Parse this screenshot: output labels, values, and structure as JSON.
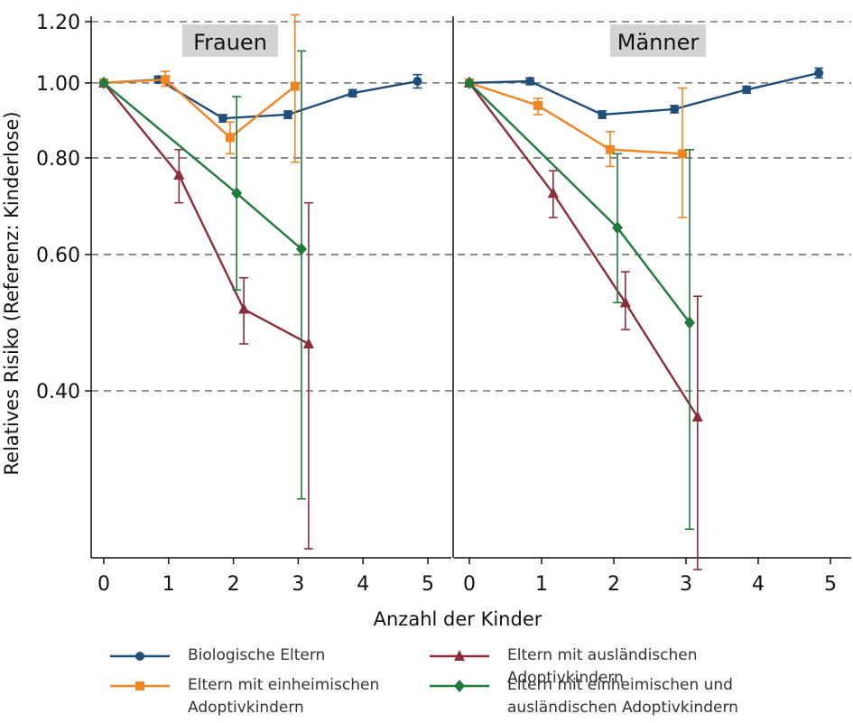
{
  "chart_data": {
    "type": "line",
    "ylabel": "Relatives Risiko (Referenz: Kinderlose)",
    "xlabel": "Anzahl der Kinder",
    "y_scale": "log",
    "y_ticks": [
      "1.20",
      "1.00",
      "0.80",
      "0.60",
      "0.40"
    ],
    "y_tick_values": [
      1.2,
      1.0,
      0.8,
      0.6,
      0.4
    ],
    "ylim": [
      0.22,
      1.2
    ],
    "xlim": [
      -0.2,
      5.3
    ],
    "x_ticks": [
      "0",
      "1",
      "2",
      "3",
      "4",
      "5"
    ],
    "grid": "horizontal dashed",
    "legend_position": "bottom",
    "panels": [
      {
        "title": "Frauen",
        "series": [
          {
            "name": "Biologische Eltern",
            "color": "#1f4e79",
            "marker": "circle",
            "x": [
              0,
              0.84,
              1.84,
              2.84,
              3.84,
              4.84
            ],
            "y": [
              1.0,
              1.01,
              0.9,
              0.91,
              0.97,
              1.005
            ],
            "ci": [
              [
                1.0,
                1.0
              ],
              [
                1.0,
                1.02
              ],
              [
                0.89,
                0.91
              ],
              [
                0.9,
                0.92
              ],
              [
                0.96,
                0.98
              ],
              [
                0.985,
                1.025
              ]
            ]
          },
          {
            "name": "Eltern mit einheimischen Adoptivkindern",
            "color": "#f08523",
            "marker": "square",
            "x": [
              0,
              0.95,
              1.95,
              2.95
            ],
            "y": [
              1.0,
              1.01,
              0.85,
              0.99
            ],
            "ci": [
              [
                1.0,
                1.0
              ],
              [
                0.99,
                1.035
              ],
              [
                0.81,
                0.89
              ],
              [
                0.79,
                1.225
              ]
            ]
          },
          {
            "name": "Eltern mit ausländischen Adoptivkindern",
            "color": "#8b2e3c",
            "marker": "triangle",
            "x": [
              0,
              1.16,
              2.16,
              3.16
            ],
            "y": [
              1.0,
              0.76,
              0.51,
              0.46
            ],
            "ci": [
              [
                1.0,
                1.0
              ],
              [
                0.7,
                0.82
              ],
              [
                0.46,
                0.56
              ],
              [
                0.25,
                0.7
              ]
            ]
          },
          {
            "name": "Eltern mit einheimischen und ausländischen Adoptivkindern",
            "color": "#1f7a3c",
            "marker": "diamond",
            "x": [
              0,
              2.05,
              3.05
            ],
            "y": [
              1.0,
              0.72,
              0.61
            ],
            "ci": [
              [
                1.0,
                1.0
              ],
              [
                0.54,
                0.96
              ],
              [
                0.29,
                1.1
              ]
            ]
          }
        ]
      },
      {
        "title": "Männer",
        "series": [
          {
            "name": "Biologische Eltern",
            "color": "#1f4e79",
            "marker": "circle",
            "x": [
              0,
              0.84,
              1.84,
              2.84,
              3.84,
              4.84
            ],
            "y": [
              1.0,
              1.005,
              0.91,
              0.925,
              0.98,
              1.03
            ],
            "ci": [
              [
                1.0,
                1.0
              ],
              [
                0.995,
                1.015
              ],
              [
                0.9,
                0.92
              ],
              [
                0.915,
                0.935
              ],
              [
                0.97,
                0.99
              ],
              [
                1.015,
                1.045
              ]
            ]
          },
          {
            "name": "Eltern mit einheimischen Adoptivkindern",
            "color": "#f08523",
            "marker": "square",
            "x": [
              0,
              0.95,
              1.95,
              2.95
            ],
            "y": [
              1.0,
              0.935,
              0.82,
              0.81
            ],
            "ci": [
              [
                1.0,
                1.0
              ],
              [
                0.91,
                0.955
              ],
              [
                0.78,
                0.865
              ],
              [
                0.67,
                0.985
              ]
            ]
          },
          {
            "name": "Eltern mit ausländischen Adoptivkindern",
            "color": "#8b2e3c",
            "marker": "triangle",
            "x": [
              0,
              1.16,
              2.16,
              3.16
            ],
            "y": [
              1.0,
              0.72,
              0.52,
              0.37
            ],
            "ci": [
              [
                1.0,
                1.0
              ],
              [
                0.67,
                0.77
              ],
              [
                0.48,
                0.57
              ],
              [
                0.235,
                0.53
              ]
            ]
          },
          {
            "name": "Eltern mit einheimischen und ausländischen Adoptivkindern",
            "color": "#1f7a3c",
            "marker": "diamond",
            "x": [
              0,
              2.05,
              3.05
            ],
            "y": [
              1.0,
              0.65,
              0.49
            ],
            "ci": [
              [
                1.0,
                1.0
              ],
              [
                0.52,
                0.81
              ],
              [
                0.265,
                0.82
              ]
            ]
          }
        ]
      }
    ]
  },
  "legend": {
    "items": [
      {
        "label": "Biologische Eltern",
        "color": "#1f4e79",
        "marker": "circle"
      },
      {
        "label": "Eltern mit ausländischen Adoptivkindern",
        "color": "#8b2e3c",
        "marker": "triangle"
      },
      {
        "label": "Eltern mit einheimischen Adoptivkindern",
        "color": "#f08523",
        "marker": "square"
      },
      {
        "label": "Eltern mit einheimischen und ausländischen Adoptivkindern",
        "color": "#1f7a3c",
        "marker": "diamond"
      }
    ]
  }
}
